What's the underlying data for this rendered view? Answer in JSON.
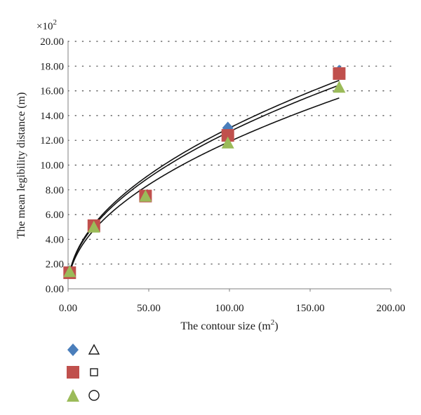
{
  "chart_data": {
    "type": "scatter",
    "xlabel": "The contour size (m",
    "xlabel_sup": "2",
    "xlabel_close": ")",
    "ylabel": "The mean legibility distance (m)",
    "multiplier_base": "×10",
    "multiplier_exp": "2",
    "xlim": [
      0,
      200
    ],
    "ylim": [
      0,
      20
    ],
    "x_ticks": [
      "0.00",
      "50.00",
      "100.00",
      "150.00",
      "200.00"
    ],
    "y_ticks": [
      "0.00",
      "2.00",
      "4.00",
      "6.00",
      "8.00",
      "10.00",
      "12.00",
      "14.00",
      "16.00",
      "18.00",
      "20.00"
    ],
    "grid": "horizontal dotted",
    "series": [
      {
        "marker": "diamond",
        "color": "#4a7ebb",
        "points": [
          [
            1,
            1.4
          ],
          [
            16,
            5.1
          ],
          [
            48,
            7.5
          ],
          [
            99,
            13.0
          ],
          [
            168,
            17.6
          ]
        ]
      },
      {
        "marker": "square",
        "color": "#c0504d",
        "points": [
          [
            1,
            1.3
          ],
          [
            16,
            5.1
          ],
          [
            48,
            7.5
          ],
          [
            99,
            12.4
          ],
          [
            168,
            17.4
          ]
        ]
      },
      {
        "marker": "triangle",
        "color": "#9bbb59",
        "points": [
          [
            1,
            1.4
          ],
          [
            16,
            5.0
          ],
          [
            48,
            7.5
          ],
          [
            99,
            11.8
          ],
          [
            168,
            16.3
          ]
        ]
      }
    ],
    "trend_lines": [
      {
        "coef": 1.3,
        "exp": 0.5,
        "x_range": [
          0.6,
          168
        ]
      },
      {
        "coef": 1.27,
        "exp": 0.5,
        "x_range": [
          0.6,
          168
        ]
      },
      {
        "coef": 1.19,
        "exp": 0.5,
        "x_range": [
          0.6,
          168
        ]
      }
    ],
    "legend": {
      "placement": "below-left",
      "rows": [
        {
          "filled_marker": "diamond",
          "filled_color": "#4a7ebb",
          "outline_marker": "triangle"
        },
        {
          "filled_marker": "square",
          "filled_color": "#c0504d",
          "outline_marker": "square"
        },
        {
          "filled_marker": "triangle",
          "filled_color": "#9bbb59",
          "outline_marker": "circle"
        }
      ]
    }
  }
}
